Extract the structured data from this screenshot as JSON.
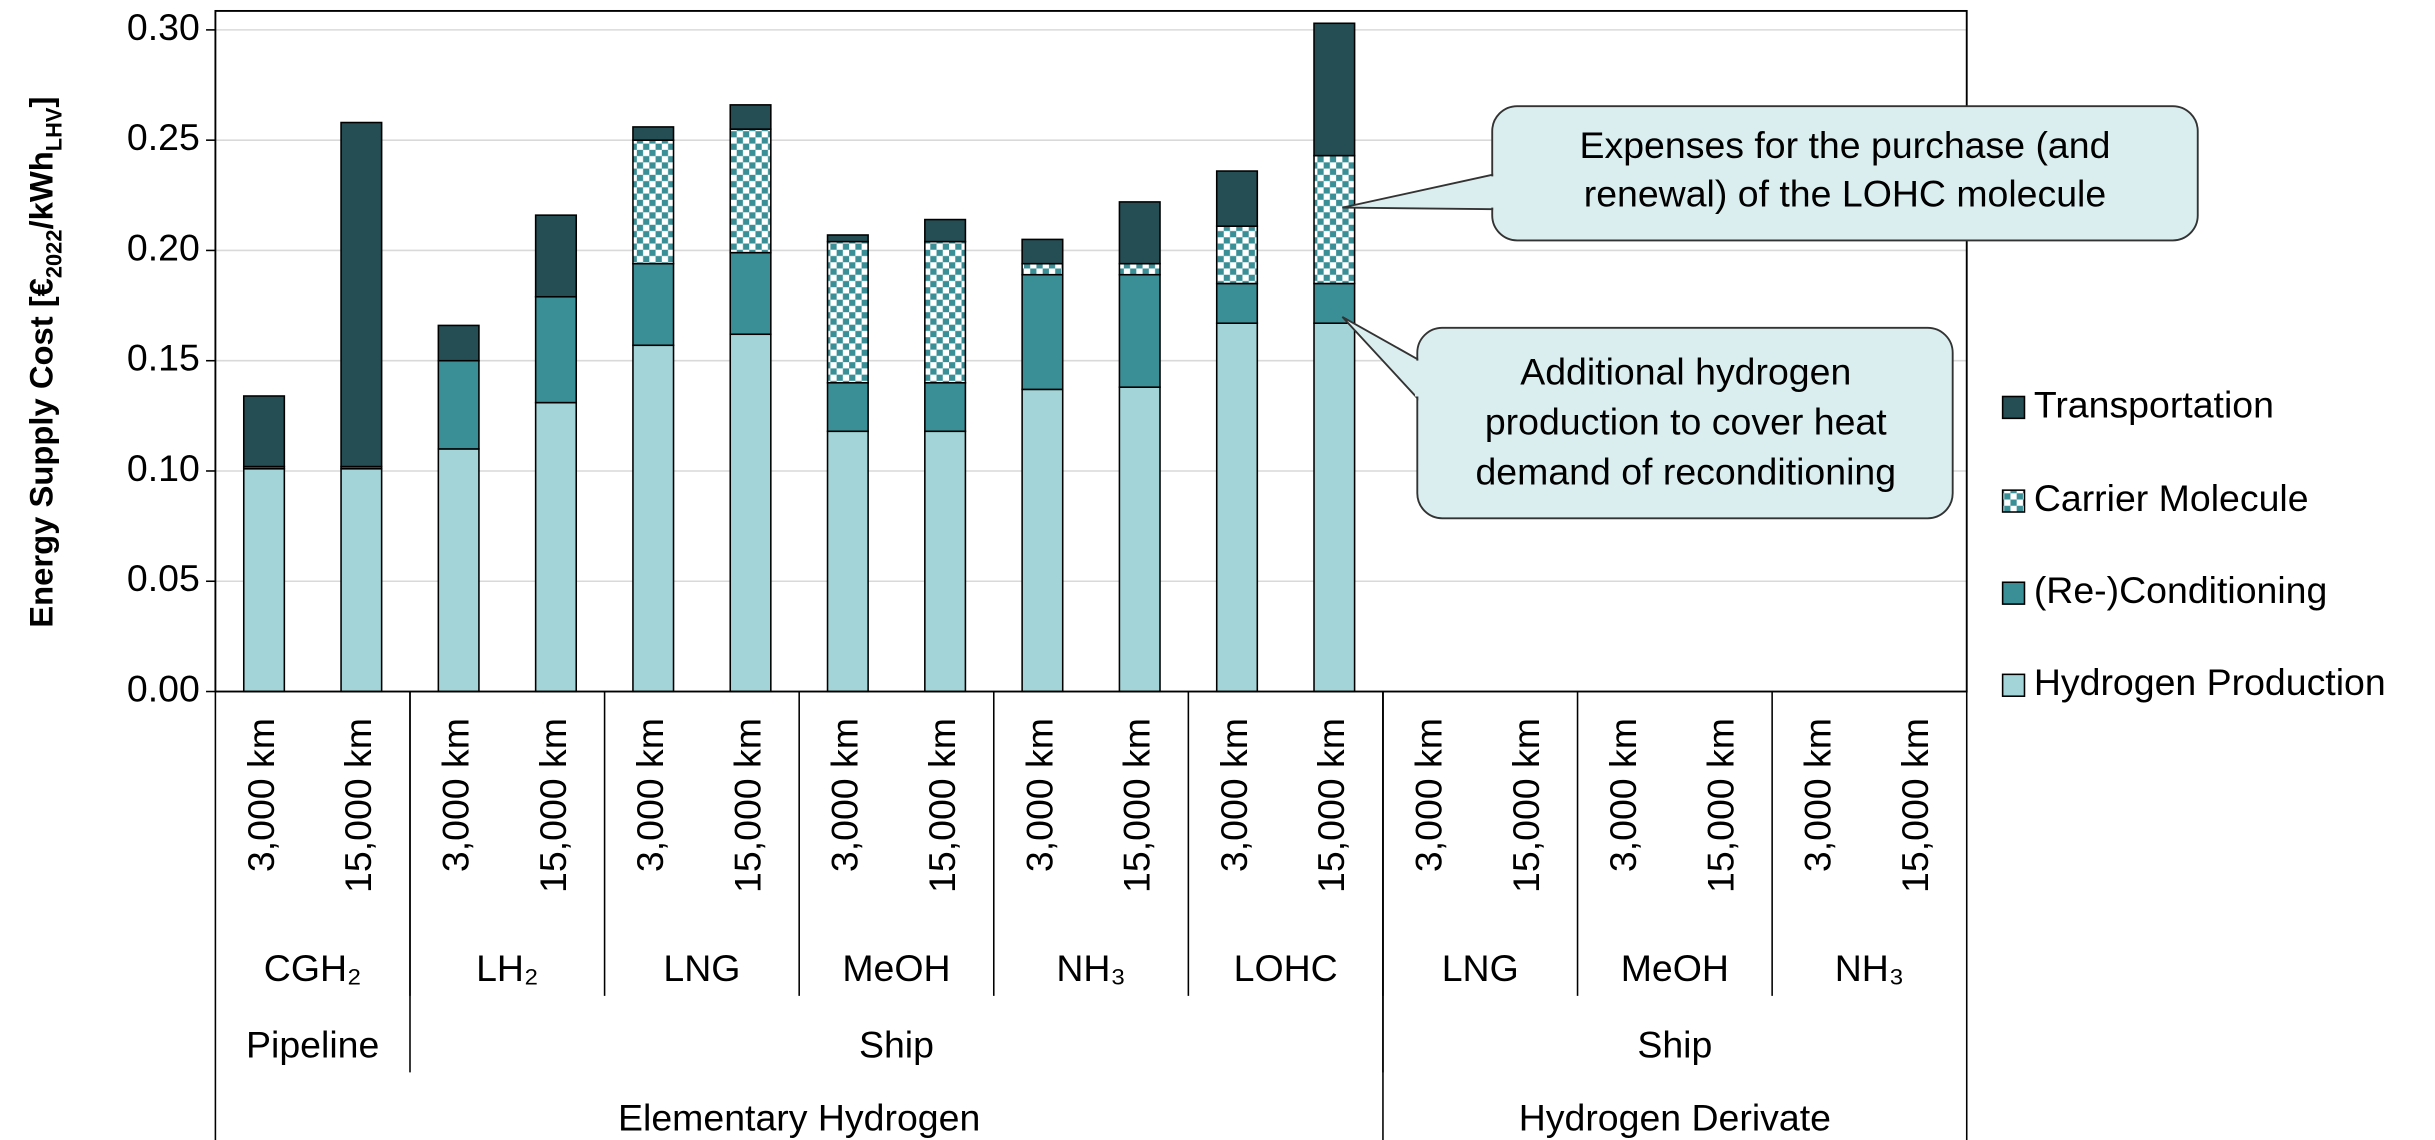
{
  "chart_data": {
    "type": "stacked_bar",
    "y_label": [
      "Energy Supply Cost [€",
      "2022",
      "/kWh",
      "LHV",
      "]"
    ],
    "categories": [
      "3,000 km",
      "15,000 km",
      "3,000 km",
      "15,000 km",
      "3,000 km",
      "15,000 km",
      "3,000 km",
      "15,000 km",
      "3,000 km",
      "15,000 km",
      "3,000 km",
      "15,000 km",
      "3,000 km",
      "15,000 km",
      "3,000 km",
      "15,000 km",
      "3,000 km",
      "15,000 km"
    ],
    "groups": [
      "CGH₂",
      "LH₂",
      "LNG",
      "MeOH",
      "NH₃",
      "LOHC",
      "LNG",
      "MeOH",
      "NH₃"
    ],
    "supergroups": [
      "Pipeline",
      "Ship",
      "Ship"
    ],
    "families": [
      "Elementary Hydrogen",
      "Hydrogen Derivate"
    ],
    "series": [
      {
        "name": "Hydrogen Production",
        "color": "#a3d5d8",
        "values": [
          0.101,
          0.101,
          0.11,
          0.131,
          0.157,
          0.162,
          0.118,
          0.118,
          0.137,
          0.138,
          0.167,
          0.167,
          null,
          null,
          null,
          null,
          null,
          null
        ]
      },
      {
        "name": "(Re-)Conditioning",
        "color": "#3a8f96",
        "values": [
          0.001,
          0.001,
          0.04,
          0.048,
          0.037,
          0.037,
          0.022,
          0.022,
          0.052,
          0.051,
          0.018,
          0.018,
          null,
          null,
          null,
          null,
          null,
          null
        ]
      },
      {
        "name": "Carrier Molecule",
        "color": "#3a8f96",
        "pattern": "checker",
        "values": [
          0,
          0,
          0,
          0,
          0.056,
          0.056,
          0.064,
          0.064,
          0.005,
          0.005,
          0.026,
          0.058,
          null,
          null,
          null,
          null,
          null,
          null
        ]
      },
      {
        "name": "Transportation",
        "color": "#244e53",
        "values": [
          0.032,
          0.156,
          0.016,
          0.037,
          0.006,
          0.011,
          0.003,
          0.01,
          0.011,
          0.028,
          0.025,
          0.06,
          null,
          null,
          null,
          null,
          null,
          null
        ]
      }
    ],
    "ylim": [
      0,
      0.3086
    ],
    "yticks": [
      {
        "value": 0,
        "label": "0.00"
      },
      {
        "value": 0.05,
        "label": "0.05"
      },
      {
        "value": 0.1,
        "label": "0.10"
      },
      {
        "value": 0.15,
        "label": "0.15"
      },
      {
        "value": 0.2,
        "label": "0.20"
      },
      {
        "value": 0.25,
        "label": "0.25"
      },
      {
        "value": 0.3,
        "label": "0.30"
      }
    ],
    "grid": true,
    "legend": "right",
    "annotations": [
      {
        "text": [
          "Expenses for the purchase (and",
          "renewal) of the LOHC molecule"
        ]
      },
      {
        "text": [
          "Additional hydrogen",
          "production to cover heat",
          "demand of reconditioning"
        ]
      }
    ]
  }
}
